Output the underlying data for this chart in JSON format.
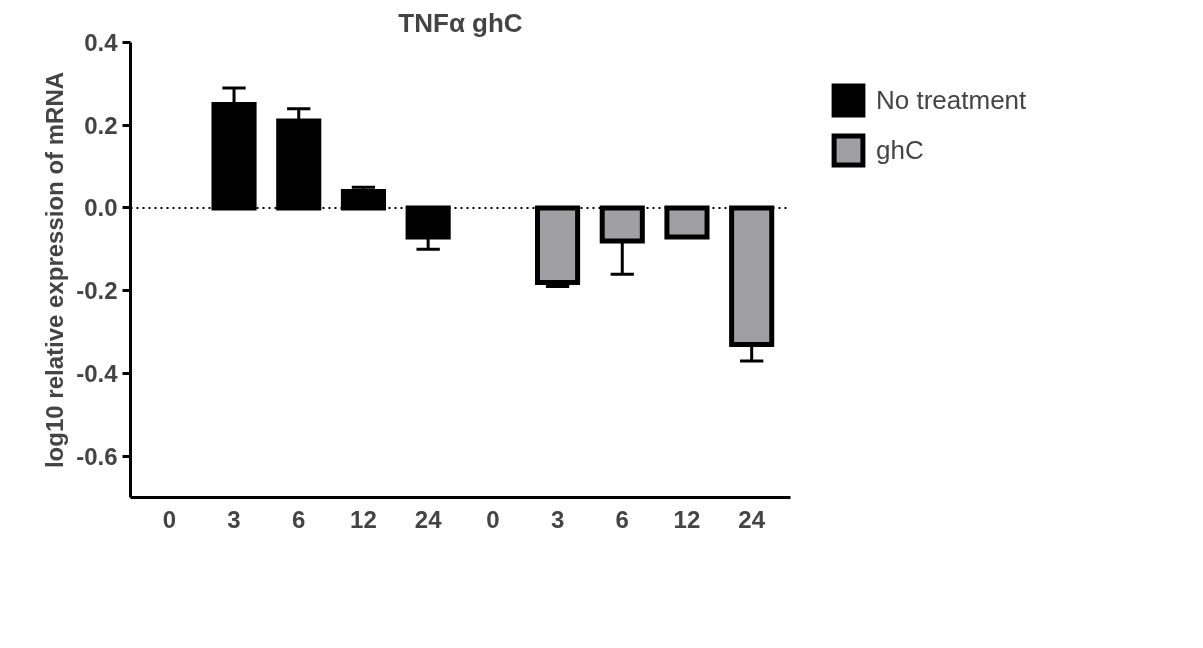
{
  "chart_data": {
    "type": "bar",
    "title": "TNFα ghC",
    "ylabel": "log10 relative expression of mRNA",
    "categories": [
      "0",
      "3",
      "6",
      "12",
      "24",
      "0",
      "3",
      "6",
      "12",
      "24"
    ],
    "series": [
      {
        "name": "No treatment",
        "color": "#000000",
        "values": [
          null,
          0.25,
          0.21,
          0.04,
          -0.07,
          null,
          null,
          null,
          null,
          null
        ],
        "errors": [
          null,
          [
            0.25,
            0.29
          ],
          [
            0.21,
            0.24
          ],
          [
            0.04,
            0.05
          ],
          [
            -0.1,
            -0.07
          ],
          null,
          null,
          null,
          null,
          null
        ]
      },
      {
        "name": "ghC",
        "color": "#a0a0a4",
        "values": [
          null,
          null,
          null,
          null,
          null,
          null,
          -0.18,
          -0.08,
          -0.07,
          -0.33
        ],
        "errors": [
          null,
          null,
          null,
          null,
          null,
          null,
          [
            -0.19,
            -0.18
          ],
          [
            -0.16,
            -0.08
          ],
          null,
          [
            -0.37,
            -0.33
          ]
        ]
      }
    ],
    "ylim": [
      -0.7,
      0.4
    ],
    "yticks": [
      -0.6,
      -0.4,
      -0.2,
      {
        "value": 0,
        "label": "0.0"
      },
      0.2,
      0.4
    ],
    "ref_lines": [
      {
        "axis": "y",
        "value": 0,
        "line_style": "dotted",
        "color": "#000000"
      }
    ],
    "grid": false,
    "legend": "top right"
  }
}
